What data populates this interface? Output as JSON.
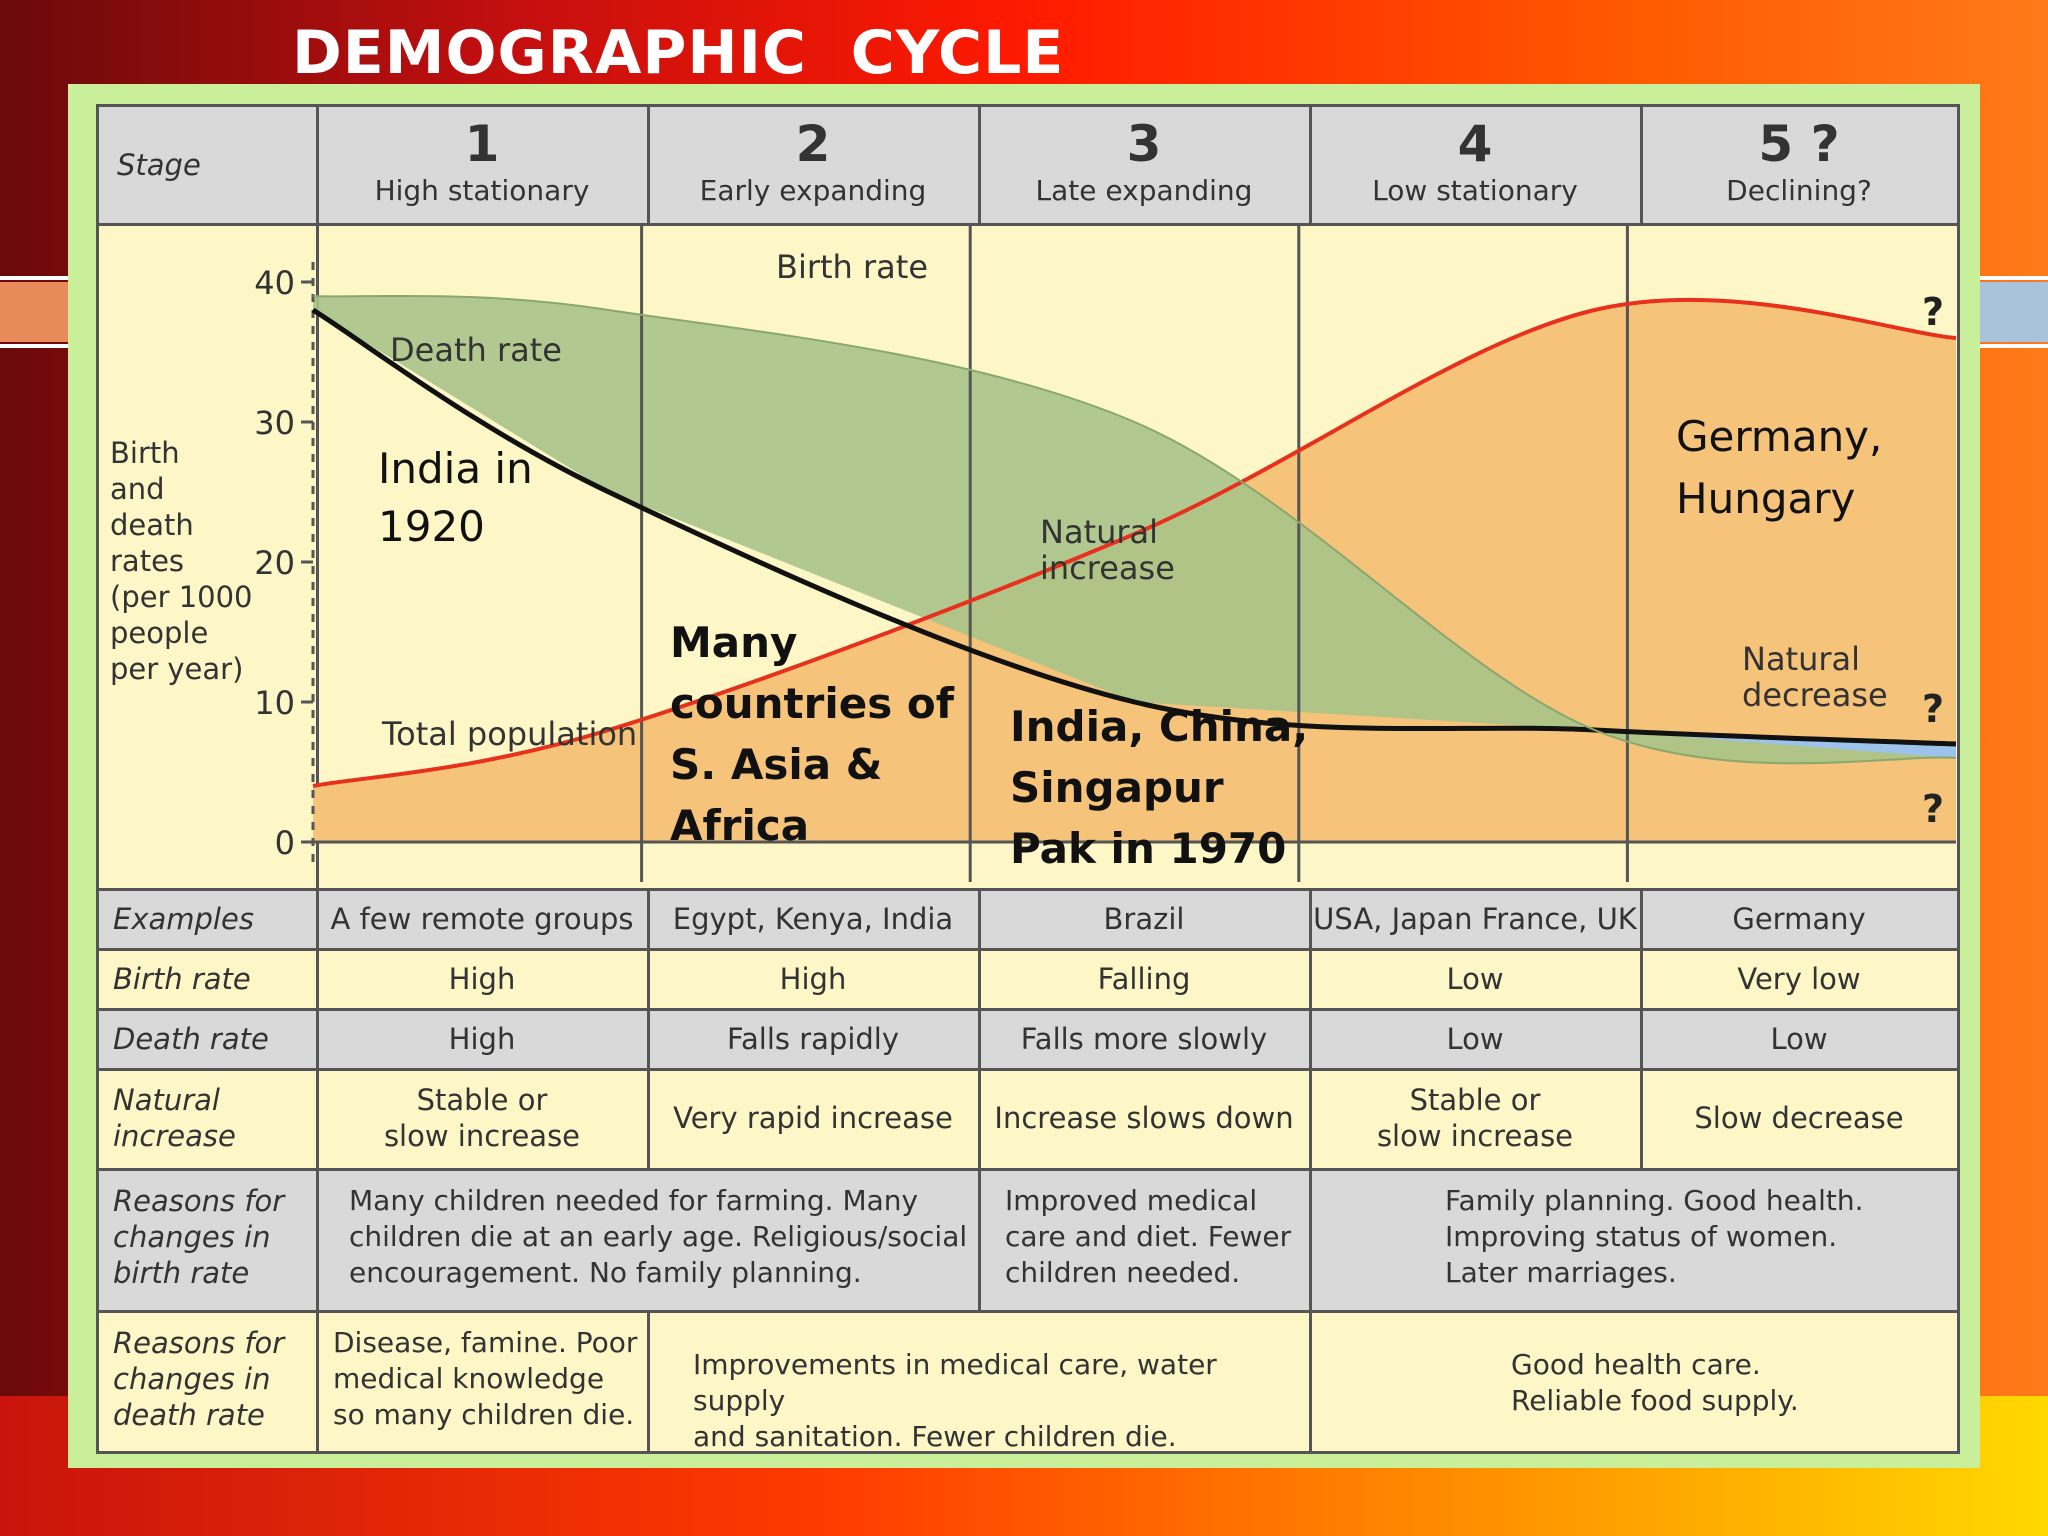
{
  "slide": {
    "title": "DEMOGRAPHIC  CYCLE"
  },
  "header": {
    "stage_label": "Stage",
    "stages": [
      {
        "number": "1",
        "name": "High stationary"
      },
      {
        "number": "2",
        "name": "Early expanding"
      },
      {
        "number": "3",
        "name": "Late expanding"
      },
      {
        "number": "4",
        "name": "Low stationary"
      },
      {
        "number": "5 ?",
        "name": "Declining?"
      }
    ]
  },
  "chart_data": {
    "type": "line",
    "ylabel": "Birth and death rates (per 1000 people per year)",
    "y_ticks": [
      "0",
      "10",
      "20",
      "30",
      "40"
    ],
    "ylim": [
      0,
      40
    ],
    "x": [
      "1",
      "2",
      "3",
      "4",
      "5 ?"
    ],
    "series": [
      {
        "name": "Birth rate",
        "values": [
          39,
          38,
          30,
          8,
          6
        ]
      },
      {
        "name": "Death rate",
        "values": [
          38,
          25,
          10,
          8,
          7
        ]
      },
      {
        "name": "Total population",
        "values": [
          4,
          8,
          22,
          38,
          36
        ]
      }
    ],
    "region_labels": [
      "Natural increase",
      "Natural decrease"
    ],
    "unknown_marks": [
      "?",
      "?",
      "?"
    ],
    "colors": {
      "birth_fill": "#a8c489",
      "population_fill": "#f6c37b",
      "decrease_fill": "#9dc3ec",
      "population_line": "#e8311d",
      "death_line": "#111111"
    }
  },
  "annotations": {
    "india_1920": [
      "India in",
      "1920"
    ],
    "south_asia_africa": [
      "Many",
      "countries of",
      "S. Asia &",
      "Africa"
    ],
    "india_china": [
      "India, China,",
      "Singapur",
      "Pak in 1970"
    ],
    "germany_hungary": [
      "Germany,",
      "Hungary"
    ]
  },
  "rows": {
    "examples": {
      "label": "Examples",
      "cells": [
        "A few remote groups",
        "Egypt, Kenya, India",
        "Brazil",
        "USA, Japan France, UK",
        "Germany"
      ]
    },
    "birth_rate": {
      "label": "Birth rate",
      "cells": [
        "High",
        "High",
        "Falling",
        "Low",
        "Very low"
      ]
    },
    "death_rate": {
      "label": "Death rate",
      "cells": [
        "High",
        "Falls rapidly",
        "Falls more slowly",
        "Low",
        "Low"
      ]
    },
    "natural_increase": {
      "label_1": "Natural",
      "label_2": "increase",
      "cells": [
        [
          "Stable or",
          "slow increase"
        ],
        [
          "Very rapid increase"
        ],
        [
          "Increase slows down"
        ],
        [
          "Stable or",
          "slow increase"
        ],
        [
          "Slow decrease"
        ]
      ]
    },
    "reasons_birth": {
      "label": [
        "Reasons for",
        "changes in",
        "birth rate"
      ],
      "a": [
        "Many children needed for farming. Many",
        "children die at an early age. Religious/social",
        "encouragement. No family planning."
      ],
      "b": [
        "Improved medical",
        "care and diet. Fewer",
        "children needed."
      ],
      "c": [
        "Family planning. Good health.",
        "Improving status of women.",
        "Later marriages."
      ]
    },
    "reasons_death": {
      "label": [
        "Reasons for",
        "changes in",
        "death rate"
      ],
      "a": [
        "Disease, famine. Poor",
        "medical knowledge",
        "so many children die."
      ],
      "b": [
        "Improvements in medical care, water supply",
        "and sanitation. Fewer children die."
      ],
      "c": [
        "Good health care.",
        "Reliable food supply."
      ]
    }
  }
}
